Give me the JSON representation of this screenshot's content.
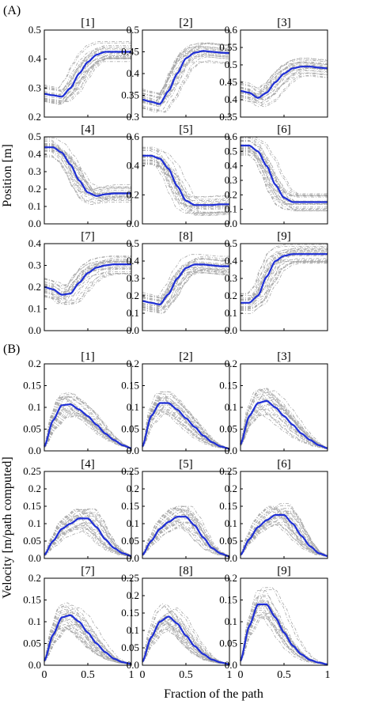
{
  "panel_labels": [
    "(A)",
    "(B)"
  ],
  "ylabel_top": "Position [m]",
  "ylabel_bottom": "Velocity [m/path computed]",
  "xlabel": "Fraction of the path",
  "line_color": "#1f2fd6",
  "trial_color": "#a8a8a8",
  "chart_data": [
    {
      "type": "line",
      "title": "[1]",
      "group": "A",
      "xlim": [
        0,
        1
      ],
      "ylim": [
        0.2,
        0.5
      ],
      "yticks": [
        "0.5",
        "0.4",
        "0.3",
        "0.2"
      ],
      "xticks": [],
      "x": [
        0,
        0.1,
        0.2,
        0.3,
        0.4,
        0.5,
        0.6,
        0.7,
        0.8,
        0.9,
        1
      ],
      "mean": [
        0.28,
        0.275,
        0.27,
        0.3,
        0.35,
        0.39,
        0.415,
        0.425,
        0.425,
        0.425,
        0.425
      ]
    },
    {
      "type": "line",
      "title": "[2]",
      "group": "A",
      "xlim": [
        0,
        1
      ],
      "ylim": [
        0.3,
        0.5
      ],
      "yticks": [
        "0.5",
        "0.45",
        "0.4",
        "0.35",
        "0.3"
      ],
      "xticks": [],
      "x": [
        0,
        0.1,
        0.2,
        0.3,
        0.4,
        0.5,
        0.6,
        0.7,
        0.8,
        0.9,
        1
      ],
      "mean": [
        0.34,
        0.335,
        0.33,
        0.36,
        0.4,
        0.435,
        0.448,
        0.452,
        0.45,
        0.448,
        0.447
      ]
    },
    {
      "type": "line",
      "title": "[3]",
      "group": "A",
      "xlim": [
        0,
        1
      ],
      "ylim": [
        0.35,
        0.6
      ],
      "yticks": [
        "0.6",
        "0.55",
        "0.5",
        "0.45",
        "0.4",
        "0.35"
      ],
      "xticks": [],
      "x": [
        0,
        0.1,
        0.2,
        0.3,
        0.4,
        0.5,
        0.6,
        0.7,
        0.8,
        0.9,
        1
      ],
      "mean": [
        0.425,
        0.42,
        0.405,
        0.42,
        0.45,
        0.475,
        0.49,
        0.495,
        0.495,
        0.492,
        0.49
      ]
    },
    {
      "type": "line",
      "title": "[4]",
      "group": "A",
      "xlim": [
        0,
        1
      ],
      "ylim": [
        0,
        0.5
      ],
      "yticks": [
        "0.5",
        "0.4",
        "0.3",
        "0.2",
        "0.1",
        "0.0"
      ],
      "xticks": [],
      "x": [
        0,
        0.1,
        0.2,
        0.3,
        0.4,
        0.5,
        0.6,
        0.7,
        0.8,
        0.9,
        1
      ],
      "mean": [
        0.44,
        0.44,
        0.41,
        0.34,
        0.25,
        0.18,
        0.16,
        0.17,
        0.175,
        0.175,
        0.175
      ]
    },
    {
      "type": "line",
      "title": "[5]",
      "group": "A",
      "xlim": [
        0,
        1
      ],
      "ylim": [
        0,
        0.6
      ],
      "yticks": [
        "0.6",
        "0.4",
        "0.2",
        "0.0"
      ],
      "xticks": [],
      "x": [
        0,
        0.1,
        0.2,
        0.3,
        0.4,
        0.5,
        0.6,
        0.7,
        0.8,
        0.9,
        1
      ],
      "mean": [
        0.47,
        0.47,
        0.45,
        0.38,
        0.26,
        0.16,
        0.13,
        0.13,
        0.13,
        0.135,
        0.135
      ]
    },
    {
      "type": "line",
      "title": "[6]",
      "group": "A",
      "xlim": [
        0,
        1
      ],
      "ylim": [
        0,
        0.6
      ],
      "yticks": [
        "0.6",
        "0.5",
        "0.4",
        "0.3",
        "0.2",
        "0.1",
        "0.0"
      ],
      "xticks": [],
      "x": [
        0,
        0.1,
        0.2,
        0.3,
        0.4,
        0.5,
        0.6,
        0.7,
        0.8,
        0.9,
        1
      ],
      "mean": [
        0.54,
        0.54,
        0.5,
        0.4,
        0.27,
        0.18,
        0.15,
        0.15,
        0.15,
        0.15,
        0.15
      ]
    },
    {
      "type": "line",
      "title": "[7]",
      "group": "A",
      "xlim": [
        0,
        1
      ],
      "ylim": [
        0,
        0.4
      ],
      "yticks": [
        "0.4",
        "0.3",
        "0.2",
        "0.1",
        "0.0"
      ],
      "xticks": [],
      "x": [
        0,
        0.1,
        0.2,
        0.3,
        0.4,
        0.5,
        0.6,
        0.7,
        0.8,
        0.9,
        1
      ],
      "mean": [
        0.2,
        0.19,
        0.165,
        0.17,
        0.22,
        0.265,
        0.29,
        0.3,
        0.305,
        0.305,
        0.305
      ]
    },
    {
      "type": "line",
      "title": "[8]",
      "group": "A",
      "xlim": [
        0,
        1
      ],
      "ylim": [
        0,
        0.5
      ],
      "yticks": [
        "0.5",
        "0.4",
        "0.3",
        "0.2",
        "0.1",
        "0.0"
      ],
      "xticks": [],
      "x": [
        0,
        0.1,
        0.2,
        0.3,
        0.4,
        0.5,
        0.6,
        0.7,
        0.8,
        0.9,
        1
      ],
      "mean": [
        0.17,
        0.16,
        0.15,
        0.21,
        0.3,
        0.36,
        0.38,
        0.38,
        0.375,
        0.37,
        0.37
      ]
    },
    {
      "type": "line",
      "title": "[9]",
      "group": "A",
      "xlim": [
        0,
        1
      ],
      "ylim": [
        0,
        0.5
      ],
      "yticks": [
        "0.5",
        "0.4",
        "0.3",
        "0.2",
        "0.1",
        "0.0"
      ],
      "xticks": [],
      "x": [
        0,
        0.1,
        0.2,
        0.3,
        0.4,
        0.5,
        0.6,
        0.7,
        0.8,
        0.9,
        1
      ],
      "mean": [
        0.16,
        0.16,
        0.2,
        0.31,
        0.4,
        0.43,
        0.44,
        0.44,
        0.44,
        0.44,
        0.44
      ]
    },
    {
      "type": "line",
      "title": "[1]",
      "group": "B",
      "xlim": [
        0,
        1
      ],
      "ylim": [
        0,
        0.2
      ],
      "yticks": [
        "0.2",
        "0.15",
        "0.1",
        "0.05",
        "0.0"
      ],
      "xticks": [],
      "x": [
        0,
        0.1,
        0.2,
        0.3,
        0.4,
        0.5,
        0.6,
        0.7,
        0.8,
        0.9,
        1
      ],
      "mean": [
        0.01,
        0.07,
        0.105,
        0.107,
        0.095,
        0.08,
        0.06,
        0.04,
        0.025,
        0.013,
        0.006
      ]
    },
    {
      "type": "line",
      "title": "[2]",
      "group": "B",
      "xlim": [
        0,
        1
      ],
      "ylim": [
        0,
        0.2
      ],
      "yticks": [
        "0.2",
        "0.15",
        "0.1",
        "0.05",
        "0.0"
      ],
      "xticks": [],
      "x": [
        0,
        0.1,
        0.2,
        0.3,
        0.4,
        0.5,
        0.6,
        0.7,
        0.8,
        0.9,
        1
      ],
      "mean": [
        0.01,
        0.08,
        0.11,
        0.11,
        0.095,
        0.075,
        0.055,
        0.035,
        0.02,
        0.01,
        0.005
      ]
    },
    {
      "type": "line",
      "title": "[3]",
      "group": "B",
      "xlim": [
        0,
        1
      ],
      "ylim": [
        0,
        0.2
      ],
      "yticks": [
        "0.2",
        "0.15",
        "0.1",
        "0.05",
        "0.0"
      ],
      "xticks": [],
      "x": [
        0,
        0.1,
        0.2,
        0.3,
        0.4,
        0.5,
        0.6,
        0.7,
        0.8,
        0.9,
        1
      ],
      "mean": [
        0.015,
        0.08,
        0.11,
        0.115,
        0.1,
        0.08,
        0.06,
        0.04,
        0.025,
        0.013,
        0.006
      ]
    },
    {
      "type": "line",
      "title": "[4]",
      "group": "B",
      "xlim": [
        0,
        1
      ],
      "ylim": [
        0,
        0.25
      ],
      "yticks": [
        "0.25",
        "0.2",
        "0.15",
        "0.1",
        "0.05",
        "0.0"
      ],
      "xticks": [],
      "x": [
        0,
        0.1,
        0.2,
        0.3,
        0.4,
        0.5,
        0.6,
        0.7,
        0.8,
        0.9,
        1
      ],
      "mean": [
        0.01,
        0.05,
        0.085,
        0.1,
        0.115,
        0.115,
        0.09,
        0.055,
        0.03,
        0.015,
        0.007
      ]
    },
    {
      "type": "line",
      "title": "[5]",
      "group": "B",
      "xlim": [
        0,
        1
      ],
      "ylim": [
        0,
        0.25
      ],
      "yticks": [
        "0.25",
        "0.2",
        "0.15",
        "0.1",
        "0.05",
        "0.0"
      ],
      "xticks": [],
      "x": [
        0,
        0.1,
        0.2,
        0.3,
        0.4,
        0.5,
        0.6,
        0.7,
        0.8,
        0.9,
        1
      ],
      "mean": [
        0.01,
        0.05,
        0.085,
        0.105,
        0.12,
        0.12,
        0.095,
        0.06,
        0.03,
        0.014,
        0.006
      ]
    },
    {
      "type": "line",
      "title": "[6]",
      "group": "B",
      "xlim": [
        0,
        1
      ],
      "ylim": [
        0,
        0.25
      ],
      "yticks": [
        "0.25",
        "0.2",
        "0.15",
        "0.1",
        "0.05",
        "0.0"
      ],
      "xticks": [],
      "x": [
        0,
        0.1,
        0.2,
        0.3,
        0.4,
        0.5,
        0.6,
        0.7,
        0.8,
        0.9,
        1
      ],
      "mean": [
        0.01,
        0.055,
        0.09,
        0.11,
        0.125,
        0.125,
        0.1,
        0.065,
        0.035,
        0.015,
        0.007
      ]
    },
    {
      "type": "line",
      "title": "[7]",
      "group": "B",
      "xlim": [
        0,
        1
      ],
      "ylim": [
        0,
        0.2
      ],
      "yticks": [
        "0.2",
        "0.15",
        "0.1",
        "0.05",
        "0.0"
      ],
      "xticks": [
        "0",
        "0.5",
        "1"
      ],
      "x": [
        0,
        0.1,
        0.2,
        0.3,
        0.4,
        0.5,
        0.6,
        0.7,
        0.8,
        0.9,
        1
      ],
      "mean": [
        0.01,
        0.07,
        0.11,
        0.115,
        0.1,
        0.075,
        0.05,
        0.03,
        0.015,
        0.007,
        0.003
      ]
    },
    {
      "type": "line",
      "title": "[8]",
      "group": "B",
      "xlim": [
        0,
        1
      ],
      "ylim": [
        0,
        0.25
      ],
      "yticks": [
        "0.25",
        "0.2",
        "0.15",
        "0.1",
        "0.05",
        "0.0"
      ],
      "xticks": [
        "0",
        "0.5",
        "1"
      ],
      "x": [
        0,
        0.1,
        0.2,
        0.3,
        0.4,
        0.5,
        0.6,
        0.7,
        0.8,
        0.9,
        1
      ],
      "mean": [
        0.01,
        0.08,
        0.125,
        0.14,
        0.12,
        0.085,
        0.055,
        0.032,
        0.016,
        0.008,
        0.003
      ]
    },
    {
      "type": "line",
      "title": "[9]",
      "group": "B",
      "xlim": [
        0,
        1
      ],
      "ylim": [
        0,
        0.2
      ],
      "yticks": [
        "0.2",
        "0.15",
        "0.1",
        "0.05",
        "0.0"
      ],
      "xticks": [
        "0",
        "0.5",
        "1"
      ],
      "x": [
        0,
        0.1,
        0.2,
        0.3,
        0.4,
        0.5,
        0.6,
        0.7,
        0.8,
        0.9,
        1
      ],
      "mean": [
        0.01,
        0.09,
        0.14,
        0.14,
        0.11,
        0.075,
        0.045,
        0.025,
        0.012,
        0.006,
        0.002
      ]
    }
  ]
}
